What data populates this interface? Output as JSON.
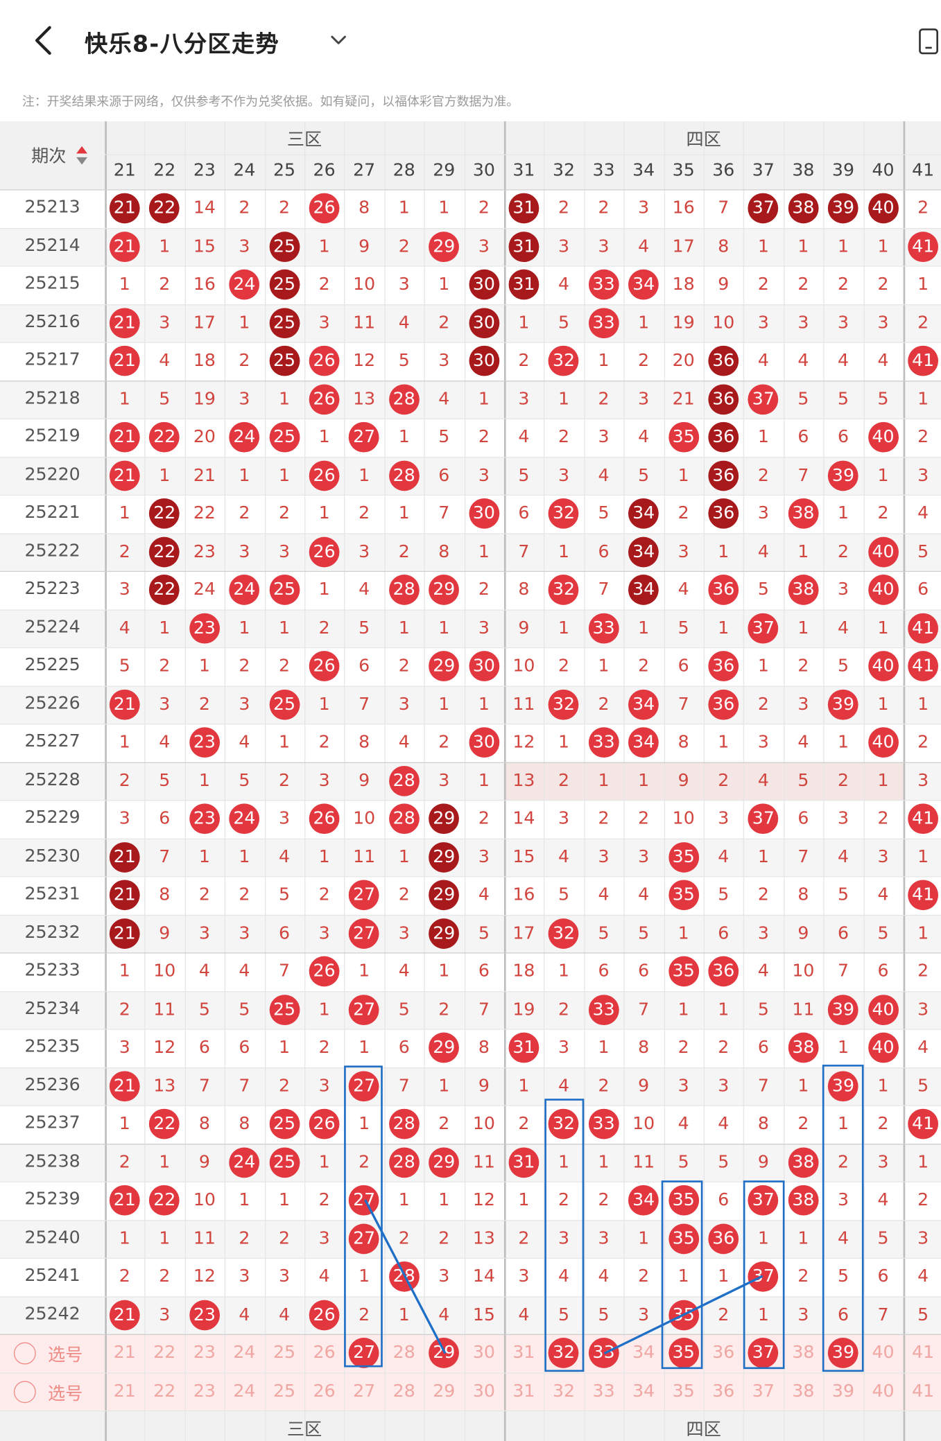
{
  "header": {
    "title": "快乐8-八分区走势",
    "back_icon": "chevron-left-icon",
    "menu_icon": "chevron-down-icon",
    "device_icon": "phone-icon"
  },
  "notice": "注：开奖结果来源于网络，仅供参考不作为兑奖依据。如有疑问，以福体彩官方数据为准。",
  "table": {
    "issue_header": "期次",
    "zones": [
      "三区",
      "四区"
    ],
    "columns": [
      21,
      22,
      23,
      24,
      25,
      26,
      27,
      28,
      29,
      30,
      31,
      32,
      33,
      34,
      35,
      36,
      37,
      38,
      39,
      40,
      41
    ],
    "rows": [
      {
        "issue": "25213",
        "cells": [
          "D21",
          "D22",
          "14",
          "2",
          "2",
          "R26",
          "8",
          "1",
          "1",
          "2",
          "D31",
          "2",
          "2",
          "3",
          "16",
          "7",
          "D37",
          "D38",
          "D39",
          "D40",
          "2"
        ]
      },
      {
        "issue": "25214",
        "cells": [
          "R21",
          "1",
          "15",
          "3",
          "D25",
          "1",
          "9",
          "2",
          "R29",
          "3",
          "D31",
          "3",
          "3",
          "4",
          "17",
          "8",
          "1",
          "1",
          "1",
          "1",
          "R41"
        ]
      },
      {
        "issue": "25215",
        "cells": [
          "1",
          "2",
          "16",
          "R24",
          "D25",
          "2",
          "10",
          "3",
          "1",
          "D30",
          "D31",
          "4",
          "R33",
          "R34",
          "18",
          "9",
          "2",
          "2",
          "2",
          "2",
          "1"
        ]
      },
      {
        "issue": "25216",
        "cells": [
          "R21",
          "3",
          "17",
          "1",
          "D25",
          "3",
          "11",
          "4",
          "2",
          "D30",
          "1",
          "5",
          "R33",
          "1",
          "19",
          "10",
          "3",
          "3",
          "3",
          "3",
          "2"
        ]
      },
      {
        "issue": "25217",
        "cells": [
          "R21",
          "4",
          "18",
          "2",
          "D25",
          "R26",
          "12",
          "5",
          "3",
          "D30",
          "2",
          "R32",
          "1",
          "2",
          "20",
          "D36",
          "4",
          "4",
          "4",
          "4",
          "R41"
        ]
      },
      {
        "issue": "25218",
        "cells": [
          "1",
          "5",
          "19",
          "3",
          "1",
          "R26",
          "13",
          "R28",
          "4",
          "1",
          "3",
          "1",
          "2",
          "3",
          "21",
          "D36",
          "R37",
          "5",
          "5",
          "5",
          "1"
        ]
      },
      {
        "issue": "25219",
        "cells": [
          "R21",
          "R22",
          "20",
          "R24",
          "R25",
          "1",
          "R27",
          "1",
          "5",
          "2",
          "4",
          "2",
          "3",
          "4",
          "R35",
          "D36",
          "1",
          "6",
          "6",
          "R40",
          "2"
        ]
      },
      {
        "issue": "25220",
        "cells": [
          "R21",
          "1",
          "21",
          "1",
          "1",
          "R26",
          "1",
          "R28",
          "6",
          "3",
          "5",
          "3",
          "4",
          "5",
          "1",
          "D36",
          "2",
          "7",
          "R39",
          "1",
          "3"
        ]
      },
      {
        "issue": "25221",
        "cells": [
          "1",
          "D22",
          "22",
          "2",
          "2",
          "1",
          "2",
          "1",
          "7",
          "R30",
          "6",
          "R32",
          "5",
          "D34",
          "2",
          "D36",
          "3",
          "R38",
          "1",
          "2",
          "4"
        ]
      },
      {
        "issue": "25222",
        "cells": [
          "2",
          "D22",
          "23",
          "3",
          "3",
          "R26",
          "3",
          "2",
          "8",
          "1",
          "7",
          "1",
          "6",
          "D34",
          "3",
          "1",
          "4",
          "1",
          "2",
          "R40",
          "5"
        ]
      },
      {
        "issue": "25223",
        "cells": [
          "3",
          "D22",
          "24",
          "R24",
          "R25",
          "1",
          "4",
          "R28",
          "R29",
          "2",
          "8",
          "R32",
          "7",
          "D34",
          "4",
          "R36",
          "5",
          "R38",
          "3",
          "R40",
          "6"
        ]
      },
      {
        "issue": "25224",
        "cells": [
          "4",
          "1",
          "R23",
          "1",
          "1",
          "2",
          "5",
          "1",
          "1",
          "3",
          "9",
          "1",
          "R33",
          "1",
          "5",
          "1",
          "R37",
          "1",
          "4",
          "1",
          "R41"
        ]
      },
      {
        "issue": "25225",
        "cells": [
          "5",
          "2",
          "1",
          "2",
          "2",
          "R26",
          "6",
          "2",
          "R29",
          "R30",
          "10",
          "2",
          "1",
          "2",
          "6",
          "R36",
          "1",
          "2",
          "5",
          "R40",
          "R41"
        ]
      },
      {
        "issue": "25226",
        "cells": [
          "R21",
          "3",
          "2",
          "3",
          "R25",
          "1",
          "7",
          "3",
          "1",
          "1",
          "11",
          "R32",
          "2",
          "R34",
          "7",
          "R36",
          "2",
          "3",
          "R39",
          "1",
          "1"
        ]
      },
      {
        "issue": "25227",
        "cells": [
          "1",
          "4",
          "R23",
          "4",
          "1",
          "2",
          "8",
          "4",
          "2",
          "R30",
          "12",
          "1",
          "R33",
          "R34",
          "8",
          "1",
          "3",
          "4",
          "1",
          "R40",
          "2"
        ]
      },
      {
        "issue": "25228",
        "cells": [
          "2",
          "5",
          "1",
          "5",
          "2",
          "3",
          "9",
          "R28",
          "3",
          "1",
          "13",
          "2",
          "1",
          "1",
          "9",
          "2",
          "4",
          "5",
          "2",
          "1",
          "3"
        ]
      },
      {
        "issue": "25229",
        "cells": [
          "3",
          "6",
          "R23",
          "R24",
          "3",
          "R26",
          "10",
          "R28",
          "D29",
          "2",
          "14",
          "3",
          "2",
          "2",
          "10",
          "3",
          "R37",
          "6",
          "3",
          "2",
          "R41"
        ]
      },
      {
        "issue": "25230",
        "cells": [
          "D21",
          "7",
          "1",
          "1",
          "4",
          "1",
          "11",
          "1",
          "D29",
          "3",
          "15",
          "4",
          "3",
          "3",
          "R35",
          "4",
          "1",
          "7",
          "4",
          "3",
          "1"
        ]
      },
      {
        "issue": "25231",
        "cells": [
          "D21",
          "8",
          "2",
          "2",
          "5",
          "2",
          "R27",
          "2",
          "D29",
          "4",
          "16",
          "5",
          "4",
          "4",
          "R35",
          "5",
          "2",
          "8",
          "5",
          "4",
          "R41"
        ]
      },
      {
        "issue": "25232",
        "cells": [
          "D21",
          "9",
          "3",
          "3",
          "6",
          "3",
          "R27",
          "3",
          "D29",
          "5",
          "17",
          "R32",
          "5",
          "5",
          "1",
          "6",
          "3",
          "9",
          "6",
          "5",
          "1"
        ]
      },
      {
        "issue": "25233",
        "cells": [
          "1",
          "10",
          "4",
          "4",
          "7",
          "R26",
          "1",
          "4",
          "1",
          "6",
          "18",
          "1",
          "6",
          "6",
          "R35",
          "R36",
          "4",
          "10",
          "7",
          "6",
          "2"
        ]
      },
      {
        "issue": "25234",
        "cells": [
          "2",
          "11",
          "5",
          "5",
          "R25",
          "1",
          "R27",
          "5",
          "2",
          "7",
          "19",
          "2",
          "R33",
          "7",
          "1",
          "1",
          "5",
          "11",
          "R39",
          "R40",
          "3"
        ]
      },
      {
        "issue": "25235",
        "cells": [
          "3",
          "12",
          "6",
          "6",
          "1",
          "2",
          "1",
          "6",
          "R29",
          "8",
          "R31",
          "3",
          "1",
          "8",
          "2",
          "2",
          "6",
          "R38",
          "1",
          "R40",
          "4"
        ]
      },
      {
        "issue": "25236",
        "cells": [
          "R21",
          "13",
          "7",
          "7",
          "2",
          "3",
          "R27",
          "7",
          "1",
          "9",
          "1",
          "4",
          "2",
          "9",
          "3",
          "3",
          "7",
          "1",
          "R39",
          "1",
          "5"
        ]
      },
      {
        "issue": "25237",
        "cells": [
          "1",
          "R22",
          "8",
          "8",
          "R25",
          "R26",
          "1",
          "R28",
          "2",
          "10",
          "2",
          "R32",
          "R33",
          "10",
          "4",
          "4",
          "8",
          "2",
          "1",
          "2",
          "R41"
        ]
      },
      {
        "issue": "25238",
        "cells": [
          "2",
          "1",
          "9",
          "R24",
          "R25",
          "1",
          "2",
          "R28",
          "R29",
          "11",
          "R31",
          "1",
          "1",
          "11",
          "5",
          "5",
          "9",
          "R38",
          "2",
          "3",
          "1"
        ]
      },
      {
        "issue": "25239",
        "cells": [
          "R21",
          "R22",
          "10",
          "1",
          "1",
          "2",
          "R27",
          "1",
          "1",
          "12",
          "1",
          "2",
          "2",
          "R34",
          "R35",
          "6",
          "R37",
          "R38",
          "3",
          "4",
          "2"
        ]
      },
      {
        "issue": "25240",
        "cells": [
          "1",
          "1",
          "11",
          "2",
          "2",
          "3",
          "R27",
          "2",
          "2",
          "13",
          "2",
          "3",
          "3",
          "1",
          "R35",
          "R36",
          "1",
          "1",
          "4",
          "5",
          "3"
        ]
      },
      {
        "issue": "25241",
        "cells": [
          "2",
          "2",
          "12",
          "3",
          "3",
          "4",
          "1",
          "R28",
          "3",
          "14",
          "3",
          "4",
          "4",
          "2",
          "1",
          "1",
          "R37",
          "2",
          "5",
          "6",
          "4"
        ]
      },
      {
        "issue": "25242",
        "cells": [
          "R21",
          "3",
          "R23",
          "4",
          "4",
          "R26",
          "2",
          "1",
          "4",
          "15",
          "4",
          "5",
          "5",
          "3",
          "R35",
          "2",
          "1",
          "3",
          "6",
          "7",
          "5"
        ]
      }
    ],
    "select_label": "选号",
    "select_rows": [
      {
        "picked": [
          27,
          29,
          32,
          33,
          35,
          37,
          39
        ]
      },
      {
        "picked": []
      }
    ],
    "footer_zones": [
      "三区",
      "四区"
    ]
  }
}
